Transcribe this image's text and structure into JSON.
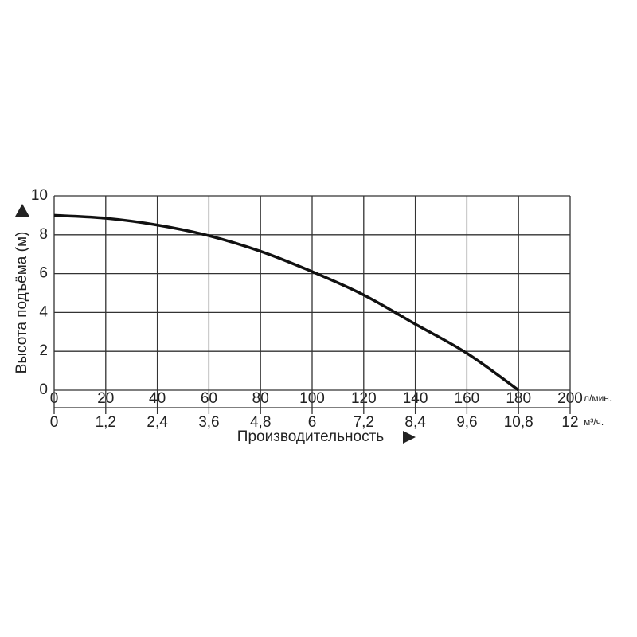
{
  "chart_data": {
    "type": "line",
    "y_label": "Высота подъёма (м)",
    "x_label": "Производительность",
    "x_unit": "л/мин.",
    "x2_unit": "м³/ч.",
    "x": [
      0,
      20,
      40,
      60,
      80,
      100,
      120,
      140,
      160,
      180
    ],
    "values": [
      9.0,
      8.85,
      8.5,
      7.95,
      7.15,
      6.1,
      4.9,
      3.4,
      1.9,
      0
    ],
    "color": "#111111",
    "xlim": [
      0,
      200
    ],
    "xticks": [
      0,
      20,
      40,
      60,
      80,
      100,
      120,
      140,
      160,
      180,
      200
    ],
    "x2lim": [
      0,
      12
    ],
    "x2ticks": [
      0,
      {
        "value": 1.2,
        "label": "1,2"
      },
      {
        "value": 2.4,
        "label": "2,4"
      },
      {
        "value": 3.6,
        "label": "3,6"
      },
      {
        "value": 4.8,
        "label": "4,8"
      },
      6,
      {
        "value": 7.2,
        "label": "7,2"
      },
      {
        "value": 8.4,
        "label": "8,4"
      },
      {
        "value": 9.6,
        "label": "9,6"
      },
      {
        "value": 10.8,
        "label": "10,8"
      },
      12
    ],
    "ylim": [
      0,
      10
    ],
    "yticks": [
      0,
      2,
      4,
      6,
      8,
      10
    ],
    "grid": true
  }
}
